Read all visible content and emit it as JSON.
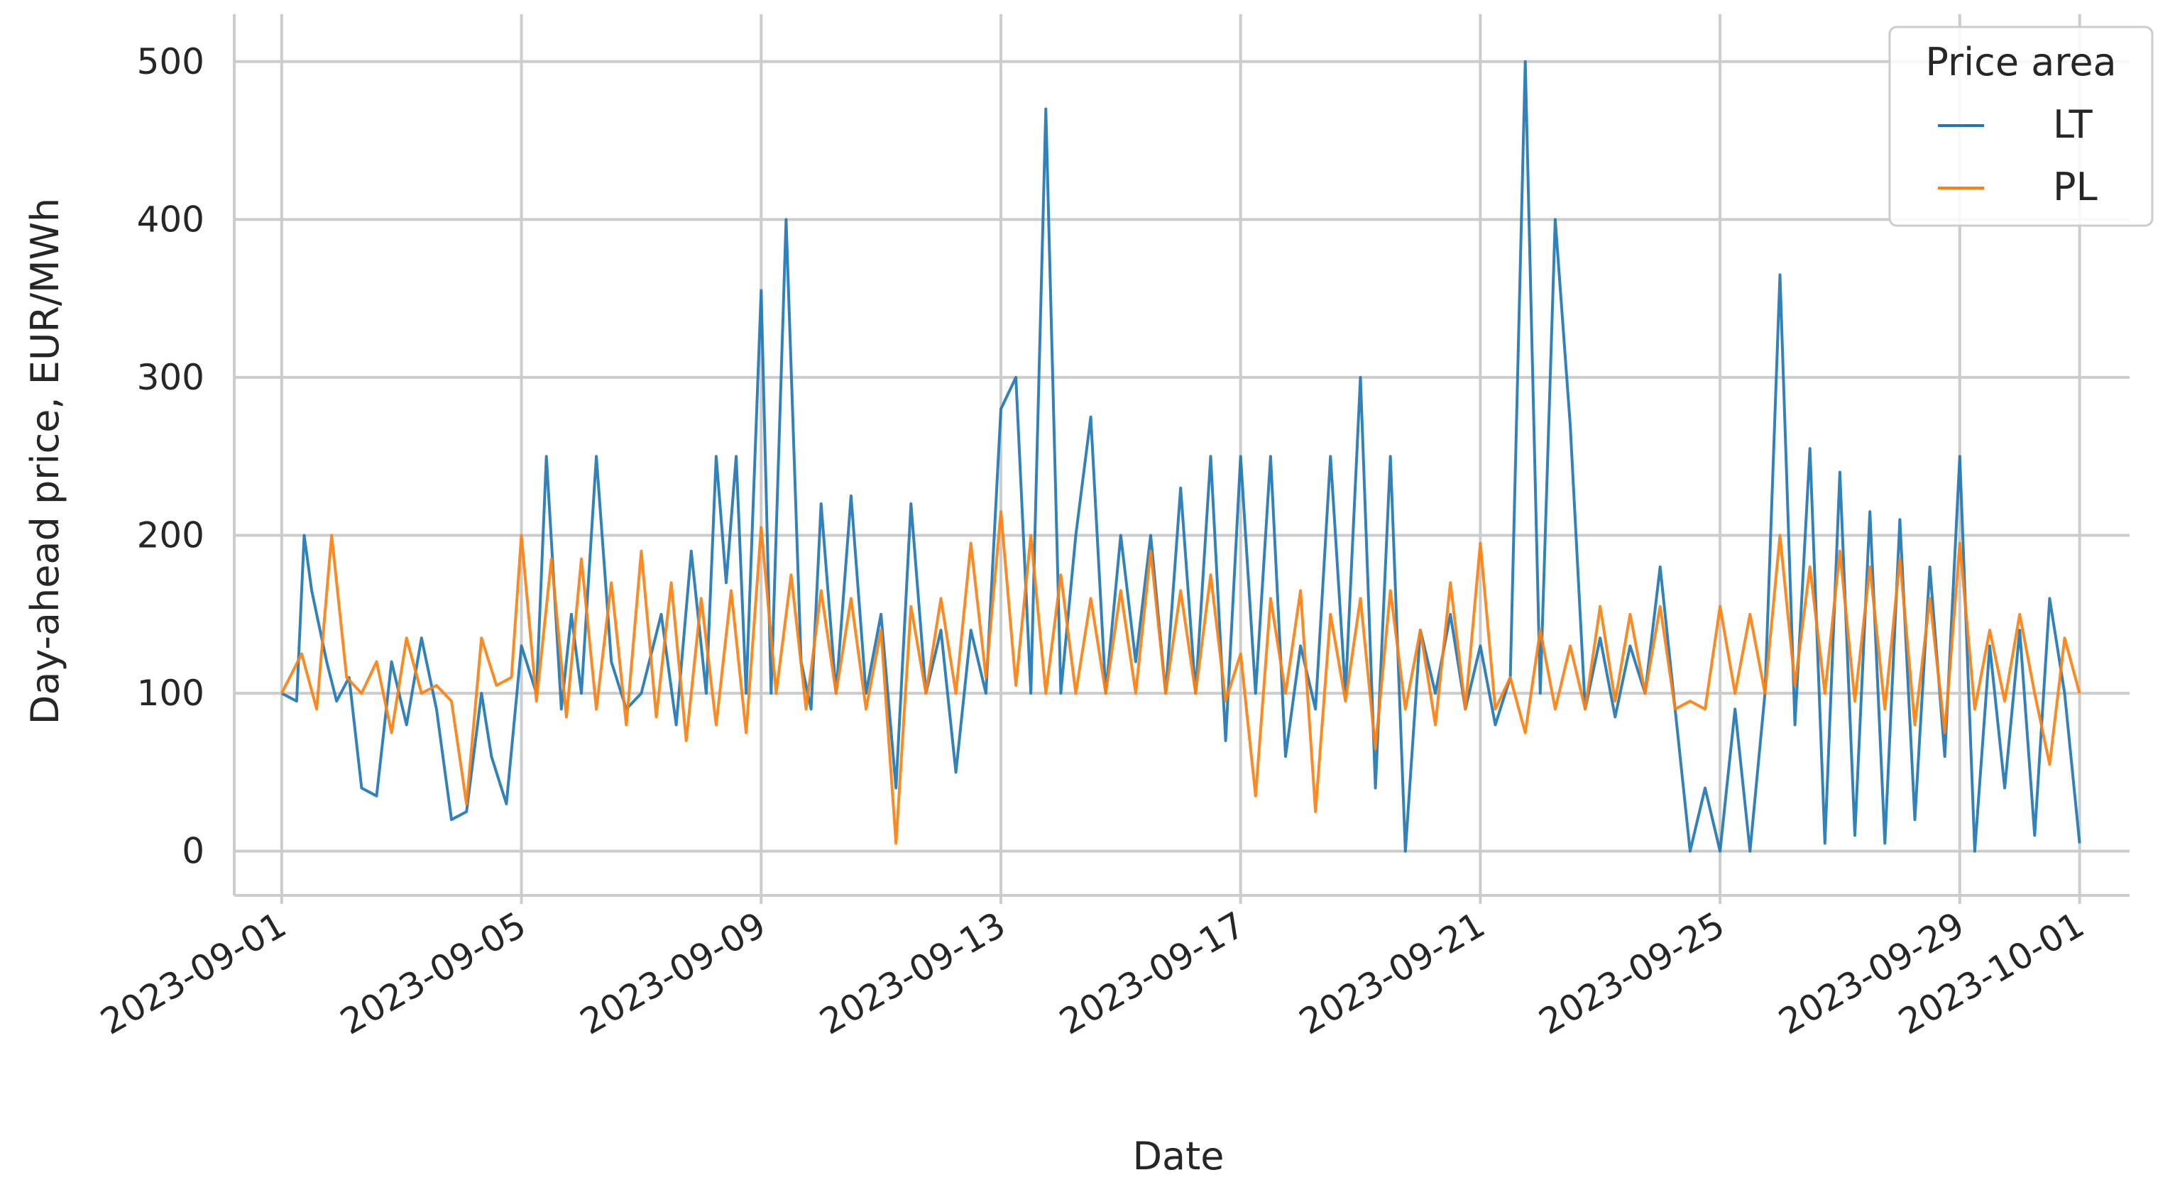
{
  "chart_data": {
    "type": "line",
    "xlabel": "Date",
    "ylabel": "Day-ahead price, EUR/MWh",
    "x_start": "2023-09-01",
    "x_end": "2023-10-01",
    "xlim": [
      "2023-08-31T05:00",
      "2023-10-01T20:00"
    ],
    "ylim": [
      -28,
      530
    ],
    "yticks": [
      0,
      100,
      200,
      300,
      400,
      500
    ],
    "ytick_labels": [
      "0",
      "100",
      "200",
      "300",
      "400",
      "500"
    ],
    "xticks": [
      "2023-09-01",
      "2023-09-05",
      "2023-09-09",
      "2023-09-13",
      "2023-09-17",
      "2023-09-21",
      "2023-09-25",
      "2023-09-29",
      "2023-10-01"
    ],
    "xtick_labels": [
      "2023-09-01",
      "2023-09-05",
      "2023-09-09",
      "2023-09-13",
      "2023-09-17",
      "2023-09-21",
      "2023-09-25",
      "2023-09-29",
      "2023-10-01"
    ],
    "grid": true,
    "legend": {
      "title": "Price area",
      "location": "top-right"
    },
    "series": [
      {
        "name": "LT",
        "color": "#1f77b4",
        "points": [
          [
            "2023-09-01T00:00",
            100
          ],
          [
            "2023-09-01T06:00",
            95
          ],
          [
            "2023-09-01T09:00",
            200
          ],
          [
            "2023-09-01T12:00",
            165
          ],
          [
            "2023-09-01T18:00",
            120
          ],
          [
            "2023-09-01T22:00",
            95
          ],
          [
            "2023-09-02T03:00",
            110
          ],
          [
            "2023-09-02T08:00",
            40
          ],
          [
            "2023-09-02T14:00",
            35
          ],
          [
            "2023-09-02T20:00",
            120
          ],
          [
            "2023-09-03T02:00",
            80
          ],
          [
            "2023-09-03T08:00",
            135
          ],
          [
            "2023-09-03T14:00",
            90
          ],
          [
            "2023-09-03T20:00",
            20
          ],
          [
            "2023-09-04T02:00",
            25
          ],
          [
            "2023-09-04T08:00",
            100
          ],
          [
            "2023-09-04T12:00",
            60
          ],
          [
            "2023-09-04T18:00",
            30
          ],
          [
            "2023-09-05T00:00",
            130
          ],
          [
            "2023-09-05T06:00",
            100
          ],
          [
            "2023-09-05T10:00",
            250
          ],
          [
            "2023-09-05T16:00",
            90
          ],
          [
            "2023-09-05T20:00",
            150
          ],
          [
            "2023-09-06T00:00",
            100
          ],
          [
            "2023-09-06T06:00",
            250
          ],
          [
            "2023-09-06T12:00",
            120
          ],
          [
            "2023-09-06T18:00",
            90
          ],
          [
            "2023-09-07T00:00",
            100
          ],
          [
            "2023-09-07T08:00",
            150
          ],
          [
            "2023-09-07T14:00",
            80
          ],
          [
            "2023-09-07T20:00",
            190
          ],
          [
            "2023-09-08T02:00",
            100
          ],
          [
            "2023-09-08T06:00",
            250
          ],
          [
            "2023-09-08T10:00",
            170
          ],
          [
            "2023-09-08T14:00",
            250
          ],
          [
            "2023-09-08T18:00",
            100
          ],
          [
            "2023-09-09T00:00",
            355
          ],
          [
            "2023-09-09T04:00",
            100
          ],
          [
            "2023-09-09T10:00",
            400
          ],
          [
            "2023-09-09T16:00",
            120
          ],
          [
            "2023-09-09T20:00",
            90
          ],
          [
            "2023-09-10T00:00",
            220
          ],
          [
            "2023-09-10T06:00",
            100
          ],
          [
            "2023-09-10T12:00",
            225
          ],
          [
            "2023-09-10T18:00",
            100
          ],
          [
            "2023-09-11T00:00",
            150
          ],
          [
            "2023-09-11T06:00",
            40
          ],
          [
            "2023-09-11T12:00",
            220
          ],
          [
            "2023-09-11T18:00",
            100
          ],
          [
            "2023-09-12T00:00",
            140
          ],
          [
            "2023-09-12T06:00",
            50
          ],
          [
            "2023-09-12T12:00",
            140
          ],
          [
            "2023-09-12T18:00",
            100
          ],
          [
            "2023-09-13T00:00",
            280
          ],
          [
            "2023-09-13T06:00",
            300
          ],
          [
            "2023-09-13T12:00",
            100
          ],
          [
            "2023-09-13T18:00",
            470
          ],
          [
            "2023-09-14T00:00",
            100
          ],
          [
            "2023-09-14T06:00",
            200
          ],
          [
            "2023-09-14T12:00",
            275
          ],
          [
            "2023-09-14T18:00",
            100
          ],
          [
            "2023-09-15T00:00",
            200
          ],
          [
            "2023-09-15T06:00",
            120
          ],
          [
            "2023-09-15T12:00",
            200
          ],
          [
            "2023-09-15T18:00",
            100
          ],
          [
            "2023-09-16T00:00",
            230
          ],
          [
            "2023-09-16T06:00",
            100
          ],
          [
            "2023-09-16T12:00",
            250
          ],
          [
            "2023-09-16T18:00",
            70
          ],
          [
            "2023-09-17T00:00",
            250
          ],
          [
            "2023-09-17T06:00",
            100
          ],
          [
            "2023-09-17T12:00",
            250
          ],
          [
            "2023-09-17T18:00",
            60
          ],
          [
            "2023-09-18T00:00",
            130
          ],
          [
            "2023-09-18T06:00",
            90
          ],
          [
            "2023-09-18T12:00",
            250
          ],
          [
            "2023-09-18T18:00",
            100
          ],
          [
            "2023-09-19T00:00",
            300
          ],
          [
            "2023-09-19T06:00",
            40
          ],
          [
            "2023-09-19T12:00",
            250
          ],
          [
            "2023-09-19T18:00",
            0
          ],
          [
            "2023-09-20T00:00",
            140
          ],
          [
            "2023-09-20T06:00",
            100
          ],
          [
            "2023-09-20T12:00",
            150
          ],
          [
            "2023-09-20T18:00",
            90
          ],
          [
            "2023-09-21T00:00",
            130
          ],
          [
            "2023-09-21T06:00",
            80
          ],
          [
            "2023-09-21T12:00",
            110
          ],
          [
            "2023-09-21T18:00",
            500
          ],
          [
            "2023-09-22T00:00",
            100
          ],
          [
            "2023-09-22T06:00",
            400
          ],
          [
            "2023-09-22T12:00",
            270
          ],
          [
            "2023-09-22T18:00",
            90
          ],
          [
            "2023-09-23T00:00",
            135
          ],
          [
            "2023-09-23T06:00",
            85
          ],
          [
            "2023-09-23T12:00",
            130
          ],
          [
            "2023-09-23T18:00",
            100
          ],
          [
            "2023-09-24T00:00",
            180
          ],
          [
            "2023-09-24T06:00",
            90
          ],
          [
            "2023-09-24T12:00",
            0
          ],
          [
            "2023-09-24T18:00",
            40
          ],
          [
            "2023-09-25T00:00",
            0
          ],
          [
            "2023-09-25T06:00",
            90
          ],
          [
            "2023-09-25T12:00",
            0
          ],
          [
            "2023-09-25T18:00",
            100
          ],
          [
            "2023-09-26T00:00",
            365
          ],
          [
            "2023-09-26T06:00",
            80
          ],
          [
            "2023-09-26T12:00",
            255
          ],
          [
            "2023-09-26T18:00",
            5
          ],
          [
            "2023-09-27T00:00",
            240
          ],
          [
            "2023-09-27T06:00",
            10
          ],
          [
            "2023-09-27T12:00",
            215
          ],
          [
            "2023-09-27T18:00",
            5
          ],
          [
            "2023-09-28T00:00",
            210
          ],
          [
            "2023-09-28T06:00",
            20
          ],
          [
            "2023-09-28T12:00",
            180
          ],
          [
            "2023-09-28T18:00",
            60
          ],
          [
            "2023-09-29T00:00",
            250
          ],
          [
            "2023-09-29T06:00",
            0
          ],
          [
            "2023-09-29T12:00",
            130
          ],
          [
            "2023-09-29T18:00",
            40
          ],
          [
            "2023-09-30T00:00",
            140
          ],
          [
            "2023-09-30T06:00",
            10
          ],
          [
            "2023-09-30T12:00",
            160
          ],
          [
            "2023-09-30T18:00",
            100
          ],
          [
            "2023-10-01T00:00",
            5
          ]
        ]
      },
      {
        "name": "PL",
        "color": "#ff7f0e",
        "points": [
          [
            "2023-09-01T00:00",
            100
          ],
          [
            "2023-09-01T08:00",
            125
          ],
          [
            "2023-09-01T14:00",
            90
          ],
          [
            "2023-09-01T20:00",
            200
          ],
          [
            "2023-09-02T02:00",
            110
          ],
          [
            "2023-09-02T08:00",
            100
          ],
          [
            "2023-09-02T14:00",
            120
          ],
          [
            "2023-09-02T20:00",
            75
          ],
          [
            "2023-09-03T02:00",
            135
          ],
          [
            "2023-09-03T08:00",
            100
          ],
          [
            "2023-09-03T14:00",
            105
          ],
          [
            "2023-09-03T20:00",
            95
          ],
          [
            "2023-09-04T02:00",
            30
          ],
          [
            "2023-09-04T08:00",
            135
          ],
          [
            "2023-09-04T14:00",
            105
          ],
          [
            "2023-09-04T20:00",
            110
          ],
          [
            "2023-09-05T00:00",
            200
          ],
          [
            "2023-09-05T06:00",
            95
          ],
          [
            "2023-09-05T12:00",
            185
          ],
          [
            "2023-09-05T18:00",
            85
          ],
          [
            "2023-09-06T00:00",
            185
          ],
          [
            "2023-09-06T06:00",
            90
          ],
          [
            "2023-09-06T12:00",
            170
          ],
          [
            "2023-09-06T18:00",
            80
          ],
          [
            "2023-09-07T00:00",
            190
          ],
          [
            "2023-09-07T06:00",
            85
          ],
          [
            "2023-09-07T12:00",
            170
          ],
          [
            "2023-09-07T18:00",
            70
          ],
          [
            "2023-09-08T00:00",
            160
          ],
          [
            "2023-09-08T06:00",
            80
          ],
          [
            "2023-09-08T12:00",
            165
          ],
          [
            "2023-09-08T18:00",
            75
          ],
          [
            "2023-09-09T00:00",
            205
          ],
          [
            "2023-09-09T06:00",
            100
          ],
          [
            "2023-09-09T12:00",
            175
          ],
          [
            "2023-09-09T18:00",
            90
          ],
          [
            "2023-09-10T00:00",
            165
          ],
          [
            "2023-09-10T06:00",
            100
          ],
          [
            "2023-09-10T12:00",
            160
          ],
          [
            "2023-09-10T18:00",
            90
          ],
          [
            "2023-09-11T00:00",
            140
          ],
          [
            "2023-09-11T06:00",
            5
          ],
          [
            "2023-09-11T12:00",
            155
          ],
          [
            "2023-09-11T18:00",
            100
          ],
          [
            "2023-09-12T00:00",
            160
          ],
          [
            "2023-09-12T06:00",
            100
          ],
          [
            "2023-09-12T12:00",
            195
          ],
          [
            "2023-09-12T18:00",
            110
          ],
          [
            "2023-09-13T00:00",
            215
          ],
          [
            "2023-09-13T06:00",
            105
          ],
          [
            "2023-09-13T12:00",
            200
          ],
          [
            "2023-09-13T18:00",
            100
          ],
          [
            "2023-09-14T00:00",
            175
          ],
          [
            "2023-09-14T06:00",
            100
          ],
          [
            "2023-09-14T12:00",
            160
          ],
          [
            "2023-09-14T18:00",
            100
          ],
          [
            "2023-09-15T00:00",
            165
          ],
          [
            "2023-09-15T06:00",
            100
          ],
          [
            "2023-09-15T12:00",
            190
          ],
          [
            "2023-09-15T18:00",
            100
          ],
          [
            "2023-09-16T00:00",
            165
          ],
          [
            "2023-09-16T06:00",
            100
          ],
          [
            "2023-09-16T12:00",
            175
          ],
          [
            "2023-09-16T18:00",
            95
          ],
          [
            "2023-09-17T00:00",
            125
          ],
          [
            "2023-09-17T06:00",
            35
          ],
          [
            "2023-09-17T12:00",
            160
          ],
          [
            "2023-09-17T18:00",
            100
          ],
          [
            "2023-09-18T00:00",
            165
          ],
          [
            "2023-09-18T06:00",
            25
          ],
          [
            "2023-09-18T12:00",
            150
          ],
          [
            "2023-09-18T18:00",
            95
          ],
          [
            "2023-09-19T00:00",
            160
          ],
          [
            "2023-09-19T06:00",
            65
          ],
          [
            "2023-09-19T12:00",
            165
          ],
          [
            "2023-09-19T18:00",
            90
          ],
          [
            "2023-09-20T00:00",
            140
          ],
          [
            "2023-09-20T06:00",
            80
          ],
          [
            "2023-09-20T12:00",
            170
          ],
          [
            "2023-09-20T18:00",
            90
          ],
          [
            "2023-09-21T00:00",
            195
          ],
          [
            "2023-09-21T06:00",
            90
          ],
          [
            "2023-09-21T12:00",
            110
          ],
          [
            "2023-09-21T18:00",
            75
          ],
          [
            "2023-09-22T00:00",
            140
          ],
          [
            "2023-09-22T06:00",
            90
          ],
          [
            "2023-09-22T12:00",
            130
          ],
          [
            "2023-09-22T18:00",
            90
          ],
          [
            "2023-09-23T00:00",
            155
          ],
          [
            "2023-09-23T06:00",
            95
          ],
          [
            "2023-09-23T12:00",
            150
          ],
          [
            "2023-09-23T18:00",
            100
          ],
          [
            "2023-09-24T00:00",
            155
          ],
          [
            "2023-09-24T06:00",
            90
          ],
          [
            "2023-09-24T12:00",
            95
          ],
          [
            "2023-09-24T18:00",
            90
          ],
          [
            "2023-09-25T00:00",
            155
          ],
          [
            "2023-09-25T06:00",
            100
          ],
          [
            "2023-09-25T12:00",
            150
          ],
          [
            "2023-09-25T18:00",
            100
          ],
          [
            "2023-09-26T00:00",
            200
          ],
          [
            "2023-09-26T06:00",
            105
          ],
          [
            "2023-09-26T12:00",
            180
          ],
          [
            "2023-09-26T18:00",
            100
          ],
          [
            "2023-09-27T00:00",
            190
          ],
          [
            "2023-09-27T06:00",
            95
          ],
          [
            "2023-09-27T12:00",
            180
          ],
          [
            "2023-09-27T18:00",
            90
          ],
          [
            "2023-09-28T00:00",
            185
          ],
          [
            "2023-09-28T06:00",
            80
          ],
          [
            "2023-09-28T12:00",
            160
          ],
          [
            "2023-09-28T18:00",
            75
          ],
          [
            "2023-09-29T00:00",
            195
          ],
          [
            "2023-09-29T06:00",
            90
          ],
          [
            "2023-09-29T12:00",
            140
          ],
          [
            "2023-09-29T18:00",
            95
          ],
          [
            "2023-09-30T00:00",
            150
          ],
          [
            "2023-09-30T06:00",
            100
          ],
          [
            "2023-09-30T12:00",
            55
          ],
          [
            "2023-09-30T18:00",
            135
          ],
          [
            "2023-10-01T00:00",
            100
          ]
        ]
      }
    ]
  }
}
